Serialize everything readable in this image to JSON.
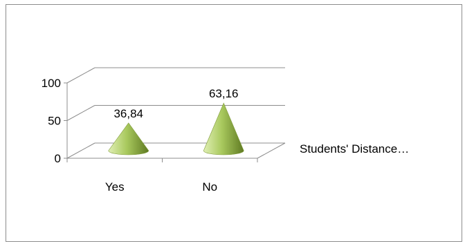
{
  "chart_data": {
    "type": "bar",
    "bar_shape": "3d-cone",
    "title": "",
    "xlabel": "",
    "ylabel": "",
    "categories": [
      "Yes",
      "No"
    ],
    "series": [
      {
        "name": "Students' Distance…",
        "values": [
          36.84,
          63.16
        ],
        "data_labels": [
          "36,84",
          "63,16"
        ],
        "color": "#9bbb59"
      }
    ],
    "ylim": [
      0,
      100
    ],
    "yticks": [
      "0",
      "50",
      "100"
    ],
    "grid": true,
    "legend": "right",
    "colors": {
      "cone_light": "#e0efb4",
      "cone_mid": "#a9c95e",
      "cone_dark": "#5f7a22",
      "grid": "#8c8c8c",
      "frame": "#8c8c8c"
    }
  }
}
